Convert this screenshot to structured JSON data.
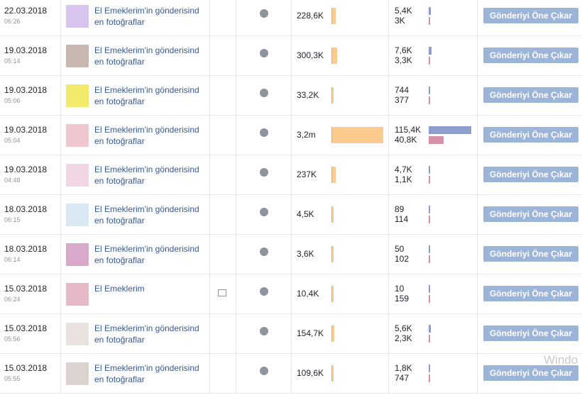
{
  "rows": [
    {
      "date": "22.03.2018",
      "time": "06:26",
      "title": "El Emeklerim'in gönderisind en fotoğraflar",
      "reach": "228,6K",
      "engagement": [
        "5,4K",
        "3K"
      ],
      "button": "Gönderiyi Öne Çıkar"
    },
    {
      "date": "19.03.2018",
      "time": "05:14",
      "title": "El Emeklerim'in gönderisind en fotoğraflar",
      "reach": "300,3K",
      "engagement": [
        "7,6K",
        "3,3K"
      ],
      "button": "Gönderiyi Öne Çıkar"
    },
    {
      "date": "19.03.2018",
      "time": "05:06",
      "title": "El Emeklerim'in gönderisind en fotoğraflar",
      "reach": "33,2K",
      "engagement": [
        "744",
        "377"
      ],
      "button": "Gönderiyi Öne Çıkar"
    },
    {
      "date": "19.03.2018",
      "time": "05:04",
      "title": "El Emeklerim'in gönderisind en fotoğraflar",
      "reach": "3,2m",
      "engagement": [
        "115,4K",
        "40,8K"
      ],
      "button": "Gönderiyi Öne Çıkar"
    },
    {
      "date": "19.03.2018",
      "time": "04:48",
      "title": "El Emeklerim'in gönderisind en fotoğraflar",
      "reach": "237K",
      "engagement": [
        "4,7K",
        "1,1K"
      ],
      "button": "Gönderiyi Öne Çıkar"
    },
    {
      "date": "18.03.2018",
      "time": "06:15",
      "title": "El Emeklerim'in gönderisind en fotoğraflar",
      "reach": "4,5K",
      "engagement": [
        "89",
        "114"
      ],
      "button": "Gönderiyi Öne Çıkar"
    },
    {
      "date": "18.03.2018",
      "time": "06:14",
      "title": "El Emeklerim'in gönderisind en fotoğraflar",
      "reach": "3,6K",
      "engagement": [
        "50",
        "102"
      ],
      "button": "Gönderiyi Öne Çıkar"
    },
    {
      "date": "15.03.2018",
      "time": "06:24",
      "title": "El Emeklerim",
      "reach": "10,4K",
      "engagement": [
        "10",
        "159"
      ],
      "button": "Gönderiyi Öne Çıkar"
    },
    {
      "date": "15.03.2018",
      "time": "05:56",
      "title": "El Emeklerim'in gönderisind en fotoğraflar",
      "reach": "154,7K",
      "engagement": [
        "5,6K",
        "2,3K"
      ],
      "button": "Gönderiyi Öne Çıkar"
    },
    {
      "date": "15.03.2018",
      "time": "05:55",
      "title": "El Emeklerim'in gönderisind en fotoğraflar",
      "reach": "109,6K",
      "engagement": [
        "1,8K",
        "747"
      ],
      "button": "Gönderiyi Öne Çıkar"
    }
  ],
  "watermark": "Windo"
}
